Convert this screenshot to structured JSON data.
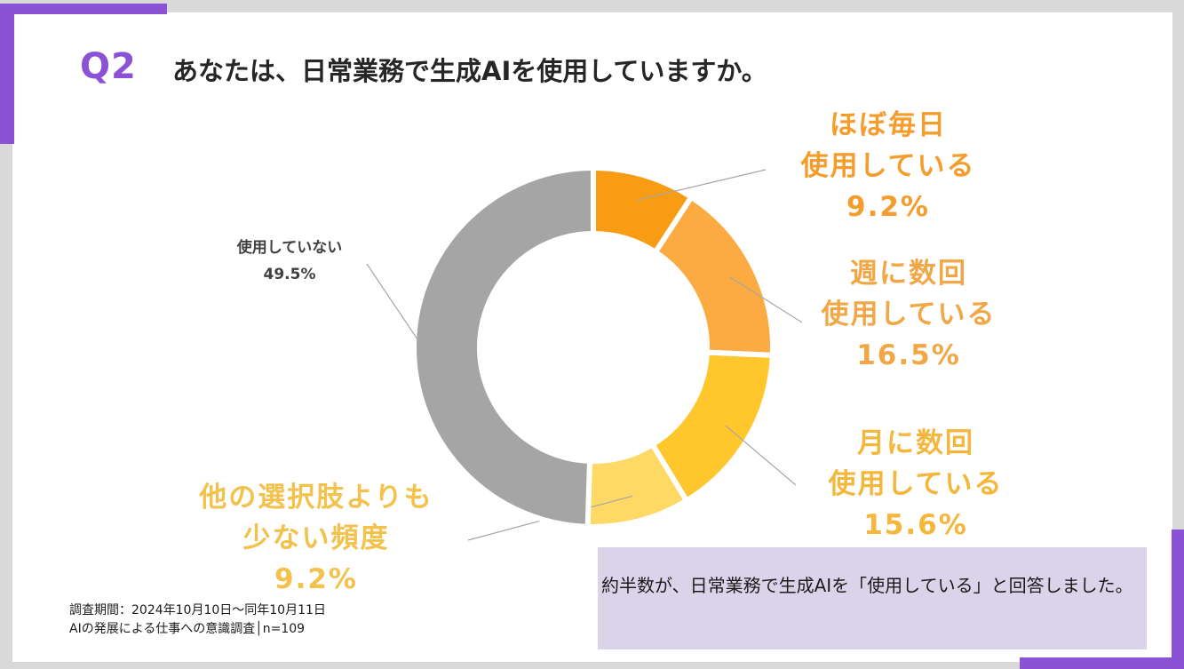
{
  "title": {
    "number": "Q2",
    "question": "あなたは、日常業務で生成AIを使用していますか。"
  },
  "chart_data": {
    "type": "pie",
    "subtype": "donut",
    "title": "あなたは、日常業務で生成AIを使用していますか。",
    "legend": "none",
    "slices": [
      {
        "label_lines": [
          "ほぼ毎日",
          "使用している"
        ],
        "value": 9.2,
        "value_label": "9.2%",
        "color": "#f89c14",
        "label_color": "#f49d2c"
      },
      {
        "label_lines": [
          "週に数回",
          "使用している"
        ],
        "value": 16.5,
        "value_label": "16.5%",
        "color": "#fbab41",
        "label_color": "#f2a747"
      },
      {
        "label_lines": [
          "月に数回",
          "使用している"
        ],
        "value": 15.6,
        "value_label": "15.6%",
        "color": "#ffc72c",
        "label_color": "#f4b73b"
      },
      {
        "label_lines": [
          "他の選択肢よりも",
          "少ない頻度"
        ],
        "value": 9.2,
        "value_label": "9.2%",
        "color": "#ffd966",
        "label_color": "#f2c24c"
      },
      {
        "label_lines": [
          "使用していない"
        ],
        "value": 49.5,
        "value_label": "49.5%",
        "color": "#a5a5a5",
        "label_color": "#404040"
      }
    ]
  },
  "footnote": {
    "line1": "調査期間：2024年10月10日〜同年10月11日",
    "line2": "AIの発展による仕事への意識調査│n=109"
  },
  "summary": {
    "text": "約半数が、日常業務で生成AIを「使用している」と回答しました。"
  }
}
